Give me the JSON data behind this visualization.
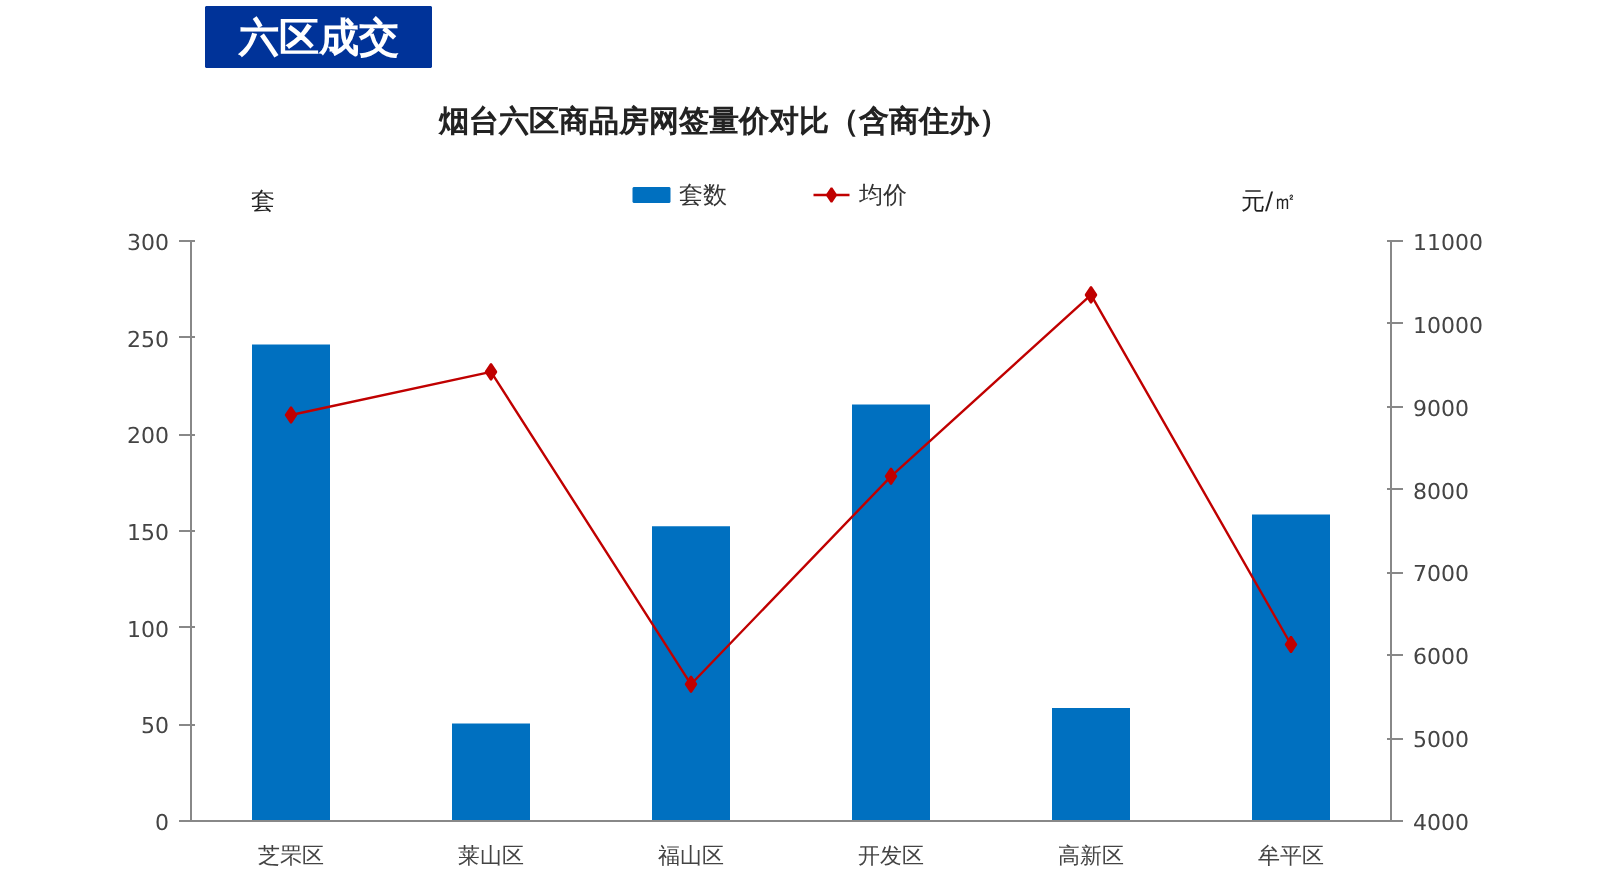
{
  "chart_data": {
    "type": "bar",
    "title": "烟台六区商品房网签量价对比（含商住办）",
    "annotations": [
      "六区成交"
    ],
    "ylabel": "套",
    "y2label": "元/㎡",
    "categories": [
      "芝罘区",
      "莱山区",
      "福山区",
      "开发区",
      "高新区",
      "牟平区"
    ],
    "series": [
      {
        "name": "套数",
        "color": "#0070c0",
        "values": [
          247,
          51,
          153,
          216,
          59,
          159
        ]
      },
      {
        "name": "均价",
        "type": "line",
        "axis": "y2",
        "color": "#c00000",
        "marker": "diamond",
        "values": [
          8900,
          9420,
          5650,
          8160,
          10350,
          6130
        ]
      }
    ],
    "ylim": [
      0,
      300
    ],
    "yticks": [
      0,
      50,
      100,
      150,
      200,
      250,
      300
    ],
    "y2lim": [
      4000,
      11000
    ],
    "y2ticks": [
      4000,
      5000,
      6000,
      7000,
      8000,
      9000,
      10000,
      11000
    ],
    "grid": false,
    "legend": "top"
  }
}
